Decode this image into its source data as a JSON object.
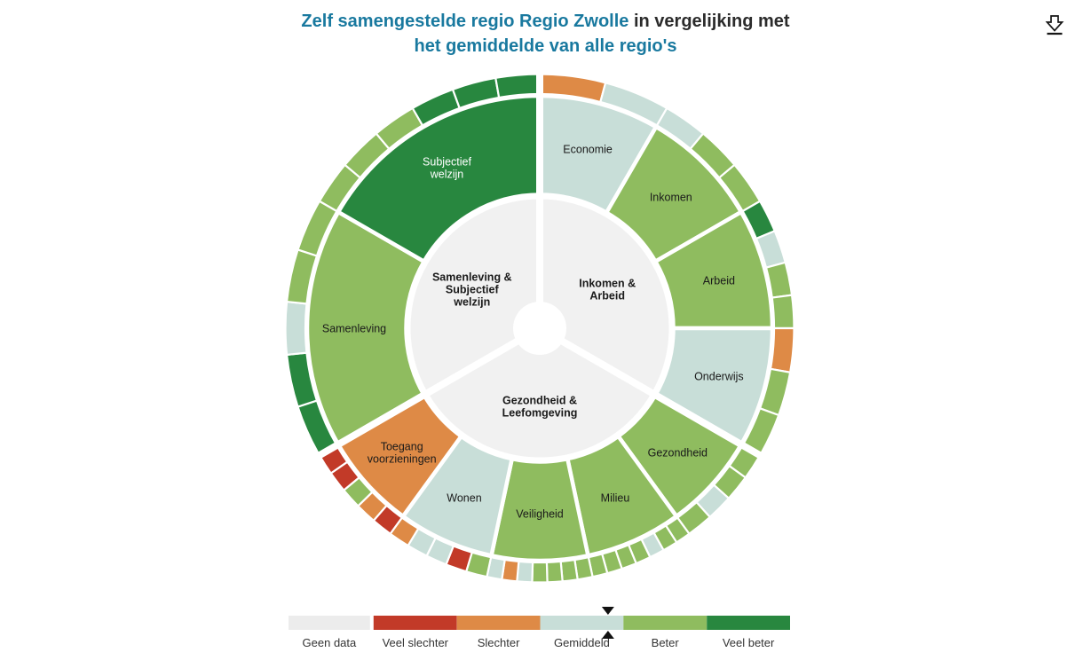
{
  "header": {
    "title_line1_highlight": "Zelf samengestelde regio Regio Zwolle",
    "title_line1_rest": " in vergelijking met",
    "title_line2": "het gemiddelde van alle regio's",
    "download_icon": "download-icon"
  },
  "chart_data": {
    "type": "sunburst",
    "description": "Radial comparison chart: inner ring = 3 welfare domains, middle ring = 11 themes colored by score vs national average, outer ring = individual indicators colored by score",
    "colors": {
      "geen_data": "#ECECEC",
      "veel_slechter": "#C23A28",
      "slechter": "#DE8A46",
      "gemiddeld": "#C8DED8",
      "beter": "#8FBC5F",
      "veel_beter": "#28873F",
      "inner_disc": "#F1F1F1",
      "text_dark": "#1A1A1A",
      "text_light": "#FFFFFF"
    },
    "sectors": [
      {
        "name": "Inkomen & Arbeid",
        "center_label_lines": [
          "Inkomen &",
          "Arbeid"
        ],
        "categories": [
          {
            "label": "Economie",
            "label_lines": [
              "Economie"
            ],
            "level": "gemiddeld",
            "segments": [
              "slechter",
              "gemiddeld"
            ]
          },
          {
            "label": "Inkomen",
            "label_lines": [
              "Inkomen"
            ],
            "level": "beter",
            "segments": [
              "gemiddeld",
              "beter",
              "beter"
            ]
          },
          {
            "label": "Arbeid",
            "label_lines": [
              "Arbeid"
            ],
            "level": "beter",
            "segments": [
              "veel_beter",
              "gemiddeld",
              "beter",
              "beter"
            ]
          },
          {
            "label": "Onderwijs",
            "label_lines": [
              "Onderwijs"
            ],
            "level": "gemiddeld",
            "segments": [
              "slechter",
              "beter",
              "beter"
            ]
          }
        ]
      },
      {
        "name": "Gezondheid & Leefomgeving",
        "center_label_lines": [
          "Gezondheid &",
          "Leefomgeving"
        ],
        "categories": [
          {
            "label": "Gezondheid",
            "label_lines": [
              "Gezondheid"
            ],
            "level": "beter",
            "segments": [
              "beter",
              "beter",
              "gemiddeld",
              "beter"
            ]
          },
          {
            "label": "Milieu",
            "label_lines": [
              "Milieu"
            ],
            "level": "beter",
            "segments": [
              "beter",
              "beter",
              "gemiddeld",
              "beter",
              "beter",
              "beter",
              "beter"
            ]
          },
          {
            "label": "Veiligheid",
            "label_lines": [
              "Veiligheid"
            ],
            "level": "beter",
            "segments": [
              "beter",
              "beter",
              "beter",
              "beter",
              "gemiddeld",
              "slechter",
              "gemiddeld"
            ]
          },
          {
            "label": "Wonen",
            "label_lines": [
              "Wonen"
            ],
            "level": "gemiddeld",
            "segments": [
              "beter",
              "veel_slechter",
              "gemiddeld",
              "gemiddeld",
              "slechter"
            ]
          },
          {
            "label": "Toegang voorzieningen",
            "label_lines": [
              "Toegang",
              "voorzieningen"
            ],
            "level": "slechter",
            "segments": [
              "veel_slechter",
              "slechter",
              "beter",
              "veel_slechter",
              "veel_slechter"
            ]
          }
        ]
      },
      {
        "name": "Samenleving & Subjectief welzijn",
        "center_label_lines": [
          "Samenleving &",
          "Subjectief",
          "welzijn"
        ],
        "categories": [
          {
            "label": "Samenleving",
            "label_lines": [
              "Samenleving"
            ],
            "level": "beter",
            "segments": [
              "veel_beter",
              "veel_beter",
              "gemiddeld",
              "beter",
              "beter"
            ]
          },
          {
            "label": "Subjectief welzijn",
            "label_lines": [
              "Subjectief",
              "welzijn"
            ],
            "level": "veel_beter",
            "label_color": "white",
            "segments": [
              "beter",
              "beter",
              "beter",
              "veel_beter",
              "veel_beter",
              "veel_beter"
            ]
          }
        ]
      }
    ],
    "legend": {
      "items": [
        {
          "label": "Geen data",
          "color_key": "geen_data"
        },
        {
          "label": "Veel slechter",
          "color_key": "veel_slechter"
        },
        {
          "label": "Slechter",
          "color_key": "slechter"
        },
        {
          "label": "Gemiddeld",
          "color_key": "gemiddeld"
        },
        {
          "label": "Beter",
          "color_key": "beter"
        },
        {
          "label": "Veel beter",
          "color_key": "veel_beter"
        }
      ],
      "marker_ratio": 0.637
    }
  }
}
